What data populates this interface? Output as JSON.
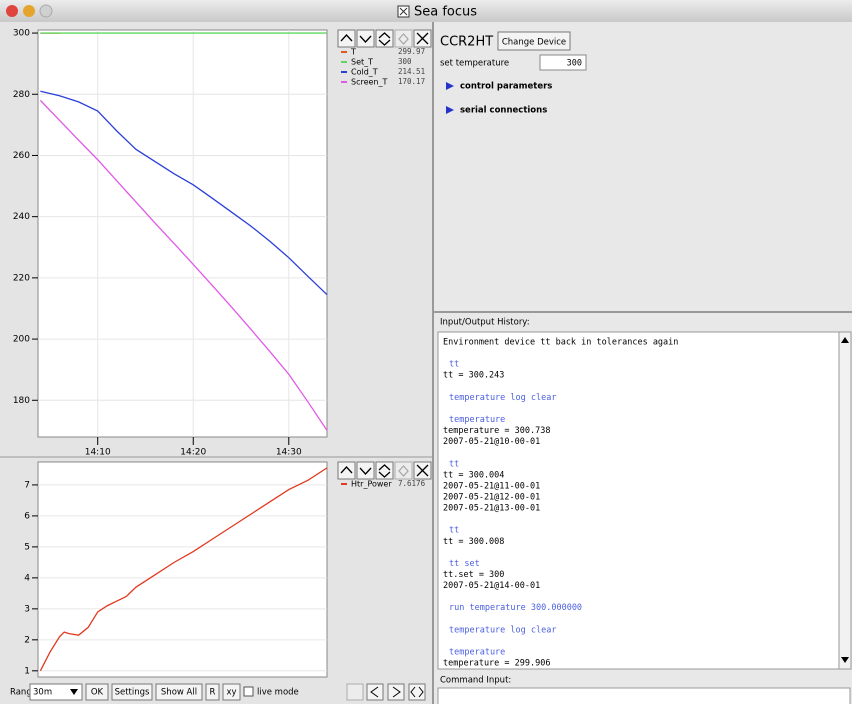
{
  "window": {
    "title": "Sea focus"
  },
  "chart_data": [
    {
      "type": "line",
      "grid": true,
      "x": [
        4,
        6,
        8,
        10,
        12,
        14,
        16,
        18,
        20,
        22,
        24,
        26,
        28,
        30,
        32,
        34
      ],
      "xlim": [
        3.75,
        34
      ],
      "xticks": [
        {
          "value": 10,
          "label": "14:10"
        },
        {
          "value": 20,
          "label": "14:20"
        },
        {
          "value": 30,
          "label": "14:30"
        }
      ],
      "ylim": [
        168,
        301
      ],
      "yticks": [
        180,
        200,
        220,
        240,
        260,
        280,
        300
      ],
      "series": [
        {
          "name": "T",
          "color": "#e2561f",
          "current": 299.97,
          "values": [
            299.97,
            299.97,
            null,
            null,
            null,
            null,
            null,
            null,
            null,
            null,
            null,
            null,
            null,
            null,
            null,
            null
          ]
        },
        {
          "name": "Set_T",
          "color": "#5fd65f",
          "current": 300,
          "values": [
            300,
            300,
            300,
            300,
            300,
            300,
            300,
            300,
            300,
            300,
            300,
            300,
            300,
            300,
            300,
            300
          ]
        },
        {
          "name": "Cold_T",
          "color": "#2a3fd8",
          "current": 214.51,
          "values": [
            281,
            279.5,
            277.5,
            274.5,
            268,
            262,
            258,
            254,
            250.4,
            246,
            241.5,
            237,
            232,
            226.6,
            220.5,
            214.51
          ]
        },
        {
          "name": "Screen_T",
          "color": "#e05ae6",
          "current": 170.17,
          "values": [
            278,
            271.5,
            265,
            258.6,
            251.7,
            244.8,
            237.9,
            231.2,
            224.4,
            217.5,
            210.5,
            203.3,
            196,
            188.5,
            179.5,
            170.17
          ]
        }
      ]
    },
    {
      "type": "line",
      "grid": true,
      "x": [
        4,
        5,
        6,
        6.5,
        7,
        8,
        9,
        10,
        10.5,
        11,
        12,
        13,
        14,
        16,
        18,
        20,
        22,
        24,
        26,
        28,
        30,
        32,
        34
      ],
      "xlim": [
        3.75,
        34
      ],
      "ylim": [
        0.8,
        7.74
      ],
      "yticks": [
        1,
        2,
        3,
        4,
        5,
        6,
        7
      ],
      "series": [
        {
          "name": "Htr_Power",
          "color": "#e2381f",
          "current": 7.6176,
          "values": [
            1.0,
            1.6,
            2.1,
            2.25,
            2.2,
            2.15,
            2.4,
            2.9,
            3.0,
            3.1,
            3.25,
            3.4,
            3.7,
            4.1,
            4.5,
            4.85,
            5.25,
            5.65,
            6.05,
            6.45,
            6.85,
            7.15,
            7.55
          ]
        }
      ]
    }
  ],
  "toolbar": {
    "range_label": "Range",
    "range": "30m",
    "buttons": [
      "OK",
      "Settings",
      "Show All",
      "R",
      "xy"
    ],
    "checkbox": "live mode"
  },
  "device": {
    "name": "CCR2HT",
    "button": "Change Device",
    "setting_label": "set temperature",
    "setting_value": 300,
    "sections": [
      "control parameters",
      "serial connections"
    ]
  },
  "history": {
    "label": "Input/Output History:",
    "entries": [
      {
        "lines": [
          "Environment device tt back in tolerances again"
        ]
      },
      {
        "command": "tt",
        "output": [
          "tt = 300.243"
        ]
      },
      {
        "command": "temperature log clear"
      },
      {
        "command": "temperature",
        "output": [
          "temperature = 300.738",
          "2007-05-21@10-00-01"
        ]
      },
      {
        "command": "tt",
        "output": [
          "tt = 300.004",
          "2007-05-21@11-00-01",
          "2007-05-21@12-00-01",
          "2007-05-21@13-00-01"
        ]
      },
      {
        "command": "tt",
        "output": [
          "tt = 300.008"
        ]
      },
      {
        "command": "tt set",
        "output": [
          "tt.set = 300",
          "2007-05-21@14-00-01"
        ]
      },
      {
        "command": "run temperature 300.000000"
      },
      {
        "command": "temperature log clear"
      },
      {
        "command": "temperature",
        "output": [
          "temperature = 299.906"
        ]
      }
    ]
  },
  "command": {
    "label": "Command Input:"
  }
}
